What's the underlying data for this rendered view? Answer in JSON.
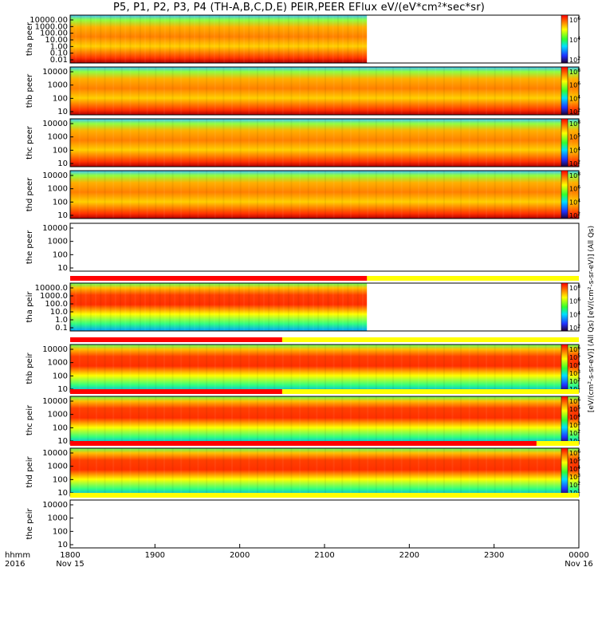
{
  "title": "P5, P1, P2, P3, P4 (TH-A,B,C,D,E) PEIR,PEER EFlux eV/(eV*cm²*sec*sr)",
  "time_axis": {
    "label_line1": "hhmm",
    "label_line2": "2016",
    "ticks": [
      {
        "t": "1800",
        "date": "Nov 15"
      },
      {
        "t": "1900",
        "date": ""
      },
      {
        "t": "2000",
        "date": ""
      },
      {
        "t": "2100",
        "date": ""
      },
      {
        "t": "2200",
        "date": ""
      },
      {
        "t": "2300",
        "date": ""
      },
      {
        "t": "0000",
        "date": "Nov 16"
      }
    ],
    "range_hours": [
      18,
      24
    ]
  },
  "colorbar_units": "[eV/(cm²-s-sr-eV)] (All Qs) [eV/(cm²-s-sr-eV)] (All Qs)",
  "colors": {
    "background": "#ffffff",
    "low": "#1a1aff",
    "high": "#ff2a00",
    "quality_bar_red": "#ff0000",
    "quality_bar_yellow": "#ffff00"
  },
  "chart_data": {
    "type": "heatmap",
    "panels": [
      {
        "probe": "tha",
        "species": "peer",
        "ylabel": "tha peer",
        "yticks": [
          "10000.00",
          "1000.00",
          "100.00",
          "10.00",
          "1.00",
          "0.10",
          "0.01"
        ],
        "data_end_hour": 21.5,
        "cb_ticks": [
          "10^6",
          "10^4",
          "10^2"
        ]
      },
      {
        "probe": "thb",
        "species": "peer",
        "ylabel": "thb peer",
        "yticks": [
          "10000",
          "1000",
          "100",
          "10"
        ],
        "data_end_hour": 24,
        "cb_ticks": [
          "10^8",
          "10^6",
          "10^4",
          "10^2"
        ]
      },
      {
        "probe": "thc",
        "species": "peer",
        "ylabel": "thc peer",
        "yticks": [
          "10000",
          "1000",
          "100",
          "10"
        ],
        "data_end_hour": 24,
        "cb_ticks": [
          "10^8",
          "10^5",
          "10^4",
          "10^2"
        ]
      },
      {
        "probe": "thd",
        "species": "peer",
        "ylabel": "thd peer",
        "yticks": [
          "10000",
          "1000",
          "100",
          "10"
        ],
        "data_end_hour": 24,
        "cb_ticks": [
          "10^8",
          "10^6",
          "10^4",
          "10^2"
        ]
      },
      {
        "probe": "the",
        "species": "peer",
        "ylabel": "the peer",
        "yticks": [
          "10000",
          "1000",
          "100",
          "10"
        ],
        "data_end_hour": 18,
        "cb_ticks": []
      },
      {
        "probe": "tha",
        "species": "peir",
        "ylabel": "tha peir",
        "yticks": [
          "10000.0",
          "1000.0",
          "100.0",
          "10.0",
          "1.0",
          "0.1"
        ],
        "data_end_hour": 21.5,
        "cb_ticks": [
          "10^8",
          "10^6",
          "10^4",
          "10^2"
        ]
      },
      {
        "probe": "thb",
        "species": "peir",
        "ylabel": "thb peir",
        "yticks": [
          "10000",
          "1000",
          "100",
          "10"
        ],
        "data_end_hour": 24,
        "cb_ticks": [
          "10^6",
          "10^5",
          "10^4",
          "10^3",
          "10^2",
          "10^1"
        ]
      },
      {
        "probe": "thc",
        "species": "peir",
        "ylabel": "thc peir",
        "yticks": [
          "10000",
          "1000",
          "100",
          "10"
        ],
        "data_end_hour": 24,
        "cb_ticks": [
          "10^6",
          "10^5",
          "10^4",
          "10^3",
          "10^2",
          "10^1"
        ]
      },
      {
        "probe": "thd",
        "species": "peir",
        "ylabel": "thd peir",
        "yticks": [
          "10000",
          "1000",
          "100",
          "10"
        ],
        "data_end_hour": 24,
        "cb_ticks": [
          "10^6",
          "10^5",
          "10^4",
          "10^3",
          "10^2",
          "10^1"
        ]
      },
      {
        "probe": "the",
        "species": "peir",
        "ylabel": "the peir",
        "yticks": [
          "10000",
          "1000",
          "100",
          "10"
        ],
        "data_end_hour": 18,
        "cb_ticks": []
      }
    ]
  }
}
